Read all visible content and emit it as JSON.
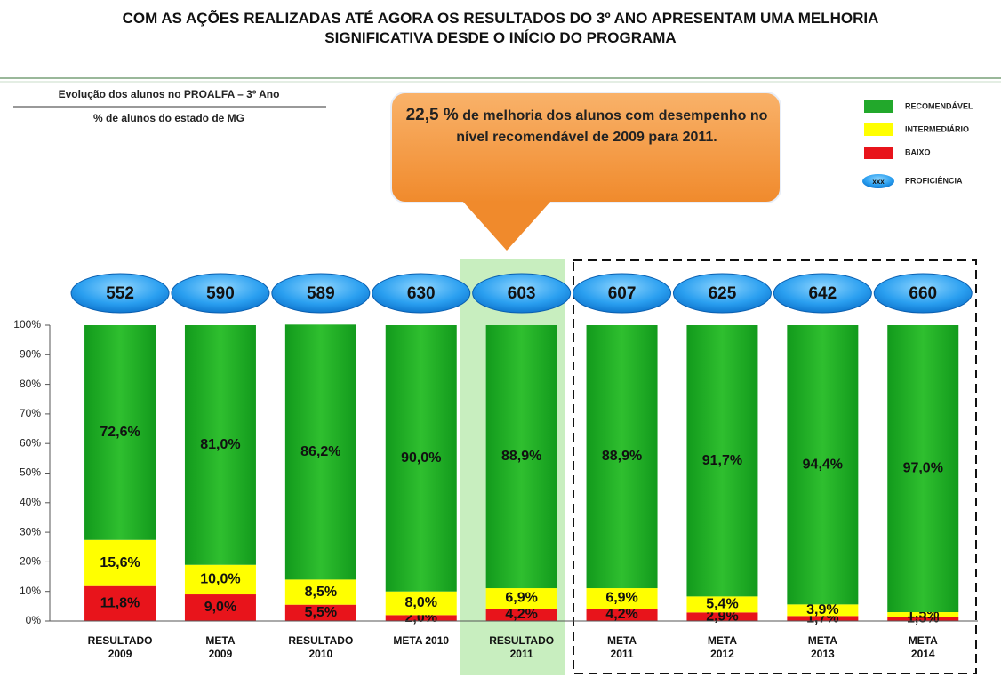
{
  "chart_data": {
    "type": "stacked_bar",
    "title": "COM AS AÇÕES REALIZADAS ATÉ AGORA OS RESULTADOS DO 3º ANO APRESENTAM UMA  MELHORIA\nSIGNIFICATIVA DESDE O INÍCIO DO PROGRAMA",
    "subtitle": "Evolução dos alunos no PROALFA – 3º Ano",
    "y_description": "% de alunos do estado de MG",
    "annotation": {
      "highlight": "22,5 %",
      "text": "de melhoria dos alunos com desempenho no nível recomendável de 2009 para 2011."
    },
    "categories": [
      "RESULTADO\n2009",
      "META\n2009",
      "RESULTADO\n2010",
      "META 2010",
      "RESULTADO\n2011",
      "META\n2011",
      "META\n2012",
      "META\n2013",
      "META\n2014"
    ],
    "series": [
      {
        "name": "BAIXO",
        "color": "#e8141b",
        "values": [
          11.8,
          9.0,
          5.5,
          2.0,
          4.2,
          4.2,
          2.9,
          1.7,
          1.5
        ],
        "value_labels": [
          "11,8%",
          "9,0%",
          "5,5%",
          "2,0%",
          "4,2%",
          "4,2%",
          "2,9%",
          "1,7%",
          "1,5%"
        ]
      },
      {
        "name": "INTERMEDIÁRIO",
        "color": "#ffff00",
        "values": [
          15.6,
          10.0,
          8.5,
          8.0,
          6.9,
          6.9,
          5.4,
          3.9,
          1.5
        ],
        "value_labels": [
          "15,6%",
          "10,0%",
          "8,5%",
          "8,0%",
          "6,9%",
          "6,9%",
          "5,4%",
          "3,9%",
          "1,5%"
        ]
      },
      {
        "name": "RECOMENDÁVEL",
        "color": "#22a82b",
        "values": [
          72.6,
          81.0,
          86.2,
          90.0,
          88.9,
          88.9,
          91.7,
          94.4,
          97.0
        ],
        "value_labels": [
          "72,6%",
          "81,0%",
          "86,2%",
          "90,0%",
          "88,9%",
          "88,9%",
          "91,7%",
          "94,4%",
          "97,0%"
        ]
      }
    ],
    "proficiency": {
      "name": "PROFICIÊNCIA",
      "marker_label": "xxx",
      "color": "#2a9ff0",
      "values": [
        552,
        590,
        589,
        630,
        603,
        607,
        625,
        642,
        660
      ]
    },
    "legend_order": [
      "RECOMENDÁVEL",
      "INTERMEDIÁRIO",
      "BAIXO"
    ],
    "legend": "top-right",
    "ylim": [
      0,
      100
    ],
    "yticks": [
      {
        "value": 0,
        "label": "0%"
      },
      {
        "value": 10,
        "label": "10%"
      },
      {
        "value": 20,
        "label": "20%"
      },
      {
        "value": 30,
        "label": "30%"
      },
      {
        "value": 40,
        "label": "40%"
      },
      {
        "value": 50,
        "label": "50%"
      },
      {
        "value": 60,
        "label": "60%"
      },
      {
        "value": 70,
        "label": "70%"
      },
      {
        "value": 80,
        "label": "80%"
      },
      {
        "value": 90,
        "label": "90%"
      },
      {
        "value": 100,
        "label": "100%"
      }
    ]
  }
}
